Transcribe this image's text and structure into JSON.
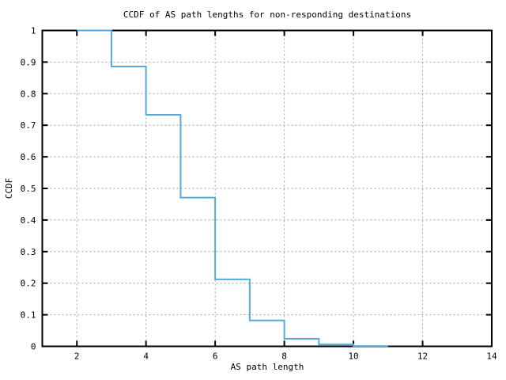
{
  "chart_data": {
    "type": "line",
    "subtype": "step-post",
    "title": "CCDF of AS path lengths for non-responding destinations",
    "xlabel": "AS path length",
    "ylabel": "CCDF",
    "xlim": [
      1,
      14
    ],
    "ylim": [
      0,
      1
    ],
    "grid": true,
    "legend": "none",
    "grid_color": "#9e9e9e",
    "border_color": "#000000",
    "background_color": "#ffffff",
    "line_color": "#55aadd",
    "xticks": [
      {
        "v": 2,
        "label": "2"
      },
      {
        "v": 4,
        "label": "4"
      },
      {
        "v": 6,
        "label": "6"
      },
      {
        "v": 8,
        "label": "8"
      },
      {
        "v": 10,
        "label": "10"
      },
      {
        "v": 12,
        "label": "12"
      },
      {
        "v": 14,
        "label": "14"
      }
    ],
    "yticks": [
      {
        "v": 0,
        "label": "0"
      },
      {
        "v": 0.1,
        "label": "0.1"
      },
      {
        "v": 0.2,
        "label": "0.2"
      },
      {
        "v": 0.3,
        "label": "0.3"
      },
      {
        "v": 0.4,
        "label": "0.4"
      },
      {
        "v": 0.5,
        "label": "0.5"
      },
      {
        "v": 0.6,
        "label": "0.6"
      },
      {
        "v": 0.7,
        "label": "0.7"
      },
      {
        "v": 0.8,
        "label": "0.8"
      },
      {
        "v": 0.9,
        "label": "0.9"
      },
      {
        "v": 1,
        "label": "1"
      }
    ],
    "series": [
      {
        "name": "CCDF of AS path lengths",
        "x": [
          2,
          3,
          4,
          5,
          6,
          7,
          8,
          9,
          10
        ],
        "y": [
          1.0,
          0.886,
          0.733,
          0.471,
          0.212,
          0.082,
          0.024,
          0.006,
          0.001
        ],
        "x_end": 11
      }
    ]
  }
}
